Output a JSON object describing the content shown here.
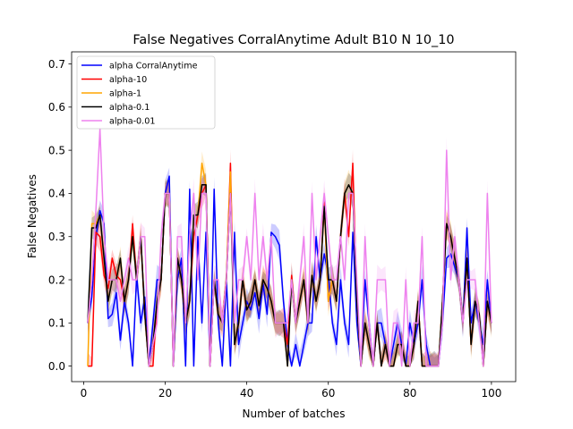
{
  "chart_data": {
    "type": "line",
    "title": "False Negatives CorralAnytime Adult B10 N 10_10",
    "xlabel": "Number of batches",
    "ylabel": "False Negatives",
    "xlim": [
      -2.95,
      105.95
    ],
    "ylim": [
      -0.036,
      0.728
    ],
    "xticks": [
      0,
      20,
      40,
      60,
      80,
      100
    ],
    "yticks": [
      0.0,
      0.1,
      0.2,
      0.3,
      0.4,
      0.5,
      0.6,
      0.7
    ],
    "grid": false,
    "legend_position": "top-left",
    "x": [
      1,
      2,
      3,
      4,
      5,
      6,
      7,
      8,
      9,
      10,
      11,
      12,
      13,
      14,
      15,
      16,
      17,
      18,
      19,
      20,
      21,
      22,
      23,
      24,
      25,
      26,
      27,
      28,
      29,
      30,
      31,
      32,
      33,
      34,
      35,
      36,
      37,
      38,
      39,
      40,
      41,
      42,
      43,
      44,
      45,
      46,
      47,
      48,
      49,
      50,
      51,
      52,
      53,
      54,
      55,
      56,
      57,
      58,
      59,
      60,
      61,
      62,
      63,
      64,
      65,
      66,
      67,
      68,
      69,
      70,
      71,
      72,
      73,
      74,
      75,
      76,
      77,
      78,
      79,
      80,
      81,
      82,
      83,
      84,
      85,
      86,
      87,
      88,
      89,
      90,
      91,
      92,
      93,
      94,
      95,
      96,
      97,
      98,
      99,
      100
    ],
    "series": [
      {
        "name": "alpha CorralAnytime",
        "color": "#0000ff",
        "values": [
          0.1,
          0.16,
          0.3,
          0.36,
          0.33,
          0.11,
          0.12,
          0.17,
          0.06,
          0.15,
          0.1,
          0.0,
          0.21,
          0.1,
          0.16,
          0.0,
          0.1,
          0.2,
          0.2,
          0.4,
          0.44,
          0.0,
          0.2,
          0.25,
          0.0,
          0.41,
          0.0,
          0.3,
          0.1,
          0.31,
          0.0,
          0.41,
          0.1,
          0.0,
          0.2,
          0.0,
          0.31,
          0.05,
          0.1,
          0.15,
          0.13,
          0.17,
          0.11,
          0.19,
          0.12,
          0.31,
          0.3,
          0.28,
          0.15,
          0.05,
          0.0,
          0.05,
          0.0,
          0.05,
          0.1,
          0.1,
          0.3,
          0.2,
          0.26,
          0.21,
          0.1,
          0.05,
          0.2,
          0.1,
          0.05,
          0.31,
          0.1,
          0.0,
          0.2,
          0.1,
          0.0,
          0.1,
          0.1,
          0.05,
          0.0,
          0.05,
          0.1,
          0.05,
          0.0,
          0.1,
          0.05,
          0.1,
          0.2,
          0.05,
          0.0,
          0.0,
          0.0,
          0.1,
          0.25,
          0.26,
          0.23,
          0.2,
          0.1,
          0.32,
          0.1,
          0.15,
          0.1,
          0.05,
          0.2,
          0.1
        ]
      },
      {
        "name": "alpha-10",
        "color": "#ff0000",
        "values": [
          0.0,
          0.0,
          0.31,
          0.3,
          0.21,
          0.18,
          0.25,
          0.21,
          0.2,
          0.15,
          0.2,
          0.33,
          0.2,
          0.3,
          0.12,
          0.0,
          0.0,
          0.15,
          0.2,
          0.4,
          0.4,
          0.0,
          0.25,
          0.2,
          0.1,
          0.15,
          0.3,
          0.35,
          0.4,
          0.42,
          0.0,
          0.2,
          0.12,
          0.1,
          0.2,
          0.47,
          0.05,
          0.1,
          0.2,
          0.13,
          0.15,
          0.2,
          0.14,
          0.2,
          0.18,
          0.15,
          0.1,
          0.1,
          0.1,
          0.05,
          0.21,
          0.1,
          0.15,
          0.2,
          0.1,
          0.21,
          0.15,
          0.2,
          0.38,
          0.15,
          0.2,
          0.15,
          0.3,
          0.4,
          0.3,
          0.47,
          0.15,
          0.0,
          0.1,
          0.05,
          0.0,
          0.1,
          0.0,
          0.05,
          0.0,
          0.0,
          0.05,
          0.05,
          0.0,
          0.0,
          0.05,
          0.15,
          0.0,
          0.0,
          0.0,
          0.0,
          0.0,
          0.15,
          0.33,
          0.3,
          0.25,
          0.2,
          0.1,
          0.25,
          0.05,
          0.15,
          0.12,
          0.0,
          0.15,
          0.1
        ]
      },
      {
        "name": "alpha-1",
        "color": "#ffa500",
        "values": [
          0.0,
          0.33,
          0.33,
          0.35,
          0.25,
          0.15,
          0.2,
          0.2,
          0.25,
          0.15,
          0.2,
          0.3,
          0.2,
          0.3,
          0.12,
          0.0,
          0.05,
          0.15,
          0.2,
          0.4,
          0.4,
          0.0,
          0.25,
          0.2,
          0.1,
          0.15,
          0.35,
          0.35,
          0.47,
          0.42,
          0.0,
          0.2,
          0.12,
          0.1,
          0.2,
          0.45,
          0.05,
          0.1,
          0.2,
          0.13,
          0.15,
          0.2,
          0.14,
          0.2,
          0.18,
          0.15,
          0.1,
          0.1,
          0.1,
          0.0,
          0.2,
          0.1,
          0.15,
          0.2,
          0.1,
          0.21,
          0.15,
          0.2,
          0.37,
          0.15,
          0.2,
          0.15,
          0.3,
          0.4,
          0.42,
          0.4,
          0.15,
          0.0,
          0.1,
          0.05,
          0.0,
          0.1,
          0.0,
          0.05,
          0.0,
          0.0,
          0.05,
          0.05,
          0.0,
          0.0,
          0.05,
          0.15,
          0.0,
          0.0,
          0.0,
          0.0,
          0.0,
          0.15,
          0.33,
          0.3,
          0.25,
          0.2,
          0.1,
          0.25,
          0.05,
          0.15,
          0.12,
          0.0,
          0.15,
          0.1
        ]
      },
      {
        "name": "alpha-0.1",
        "color": "#000000",
        "values": [
          0.1,
          0.32,
          0.32,
          0.35,
          0.25,
          0.15,
          0.2,
          0.2,
          0.25,
          0.15,
          0.2,
          0.3,
          0.2,
          0.3,
          0.12,
          0.0,
          0.05,
          0.15,
          0.2,
          0.4,
          0.4,
          0.0,
          0.25,
          0.2,
          0.1,
          0.15,
          0.35,
          0.35,
          0.42,
          0.42,
          0.0,
          0.2,
          0.12,
          0.1,
          0.2,
          0.4,
          0.05,
          0.1,
          0.2,
          0.13,
          0.15,
          0.2,
          0.14,
          0.2,
          0.18,
          0.15,
          0.1,
          0.1,
          0.1,
          0.0,
          0.2,
          0.1,
          0.15,
          0.2,
          0.1,
          0.21,
          0.15,
          0.2,
          0.37,
          0.2,
          0.2,
          0.15,
          0.3,
          0.4,
          0.42,
          0.4,
          0.15,
          0.0,
          0.1,
          0.05,
          0.0,
          0.1,
          0.0,
          0.05,
          0.0,
          0.0,
          0.05,
          0.05,
          0.0,
          0.0,
          0.05,
          0.15,
          0.0,
          0.0,
          0.0,
          0.0,
          0.0,
          0.15,
          0.33,
          0.3,
          0.25,
          0.2,
          0.1,
          0.25,
          0.05,
          0.15,
          0.12,
          0.0,
          0.15,
          0.1
        ]
      },
      {
        "name": "alpha-0.01",
        "color": "#ee82ee",
        "values": [
          0.1,
          0.2,
          0.36,
          0.55,
          0.3,
          0.2,
          0.2,
          0.2,
          0.15,
          0.2,
          0.25,
          0.2,
          0.2,
          0.3,
          0.3,
          0.0,
          0.05,
          0.1,
          0.3,
          0.4,
          0.4,
          0.0,
          0.3,
          0.3,
          0.1,
          0.3,
          0.4,
          0.2,
          0.4,
          0.4,
          0.0,
          0.2,
          0.2,
          0.1,
          0.2,
          0.4,
          0.1,
          0.2,
          0.2,
          0.3,
          0.2,
          0.4,
          0.2,
          0.3,
          0.2,
          0.3,
          0.1,
          0.1,
          0.1,
          0.1,
          0.2,
          0.1,
          0.2,
          0.3,
          0.1,
          0.4,
          0.2,
          0.3,
          0.4,
          0.3,
          0.2,
          0.2,
          0.3,
          0.2,
          0.4,
          0.4,
          0.2,
          0.0,
          0.3,
          0.1,
          0.0,
          0.2,
          0.2,
          0.2,
          0.0,
          0.1,
          0.1,
          0.0,
          0.2,
          0.0,
          0.1,
          0.1,
          0.3,
          0.0,
          0.0,
          0.0,
          0.0,
          0.1,
          0.5,
          0.2,
          0.3,
          0.2,
          0.1,
          0.2,
          0.2,
          0.2,
          0.1,
          0.0,
          0.4,
          0.1
        ]
      }
    ]
  }
}
